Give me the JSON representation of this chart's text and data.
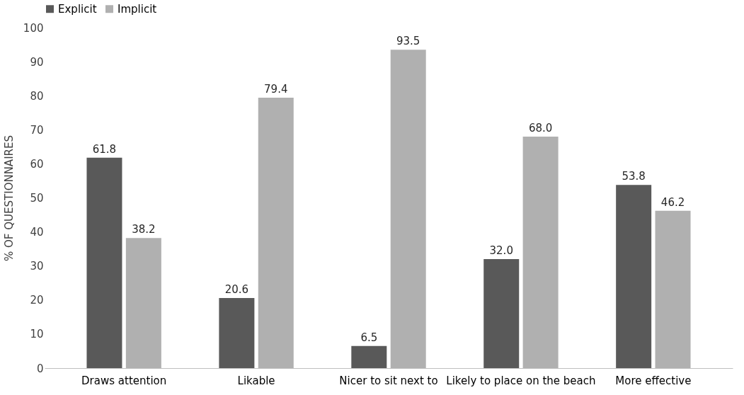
{
  "chart_data": {
    "type": "bar",
    "ylabel": "% OF QUESTIONNAIRES",
    "categories": [
      "Draws attention",
      "Likable",
      "Nicer to sit next to",
      "Likely to place on the beach",
      "More effective"
    ],
    "series": [
      {
        "name": "Explicit",
        "color": "#595959",
        "values": [
          61.8,
          20.6,
          6.5,
          32.0,
          53.8
        ],
        "value_labels": [
          "61.8",
          "20.6",
          "6.5",
          "32.0",
          "53.8"
        ]
      },
      {
        "name": "Implicit",
        "color": "#b0b0b0",
        "values": [
          38.2,
          79.4,
          93.5,
          68.0,
          46.2
        ],
        "value_labels": [
          "38.2",
          "79.4",
          "93.5",
          "68.0",
          "46.2"
        ]
      }
    ],
    "ylim": [
      0,
      100
    ],
    "yticks": [
      0,
      10,
      20,
      30,
      40,
      50,
      60,
      70,
      80,
      90,
      100
    ],
    "grid": false,
    "legend": "top"
  }
}
